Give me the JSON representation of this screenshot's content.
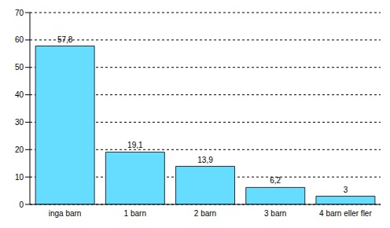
{
  "chart_data": {
    "type": "bar",
    "categories": [
      "inga barn",
      "1 barn",
      "2 barn",
      "3 barn",
      "4 barn eller fler"
    ],
    "values": [
      57.8,
      19.1,
      13.9,
      6.2,
      3
    ],
    "value_labels": [
      "57,8",
      "19,1",
      "13,9",
      "6,2",
      "3"
    ],
    "color": "#66ddff",
    "ylim": [
      0,
      70
    ],
    "yticks": [
      0,
      10,
      20,
      30,
      40,
      50,
      60,
      70
    ],
    "grid": true,
    "data_labels": true
  }
}
